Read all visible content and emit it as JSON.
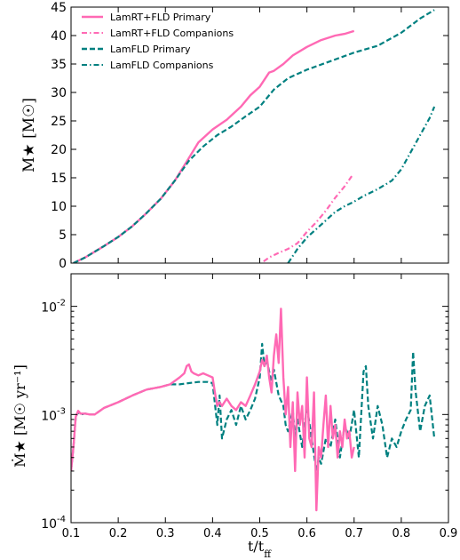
{
  "colors": {
    "pink": "#ff69b4",
    "teal": "#008080"
  },
  "chart_data": [
    {
      "type": "line",
      "ylabel": "M★ [M☉]",
      "xlim": [
        0.1,
        0.9
      ],
      "ylim": [
        0,
        45
      ],
      "y_ticks": [
        "0",
        "5",
        "10",
        "15",
        "20",
        "25",
        "30",
        "35",
        "40",
        "45"
      ],
      "legend_position": "upper-left",
      "series": [
        {
          "name": "LamRT+FLD Primary",
          "color": "#ff69b4",
          "style": "solid",
          "x": [
            0.105,
            0.13,
            0.15,
            0.17,
            0.2,
            0.23,
            0.26,
            0.29,
            0.32,
            0.35,
            0.37,
            0.4,
            0.43,
            0.46,
            0.48,
            0.5,
            0.52,
            0.53,
            0.55,
            0.57,
            0.6,
            0.63,
            0.66,
            0.68,
            0.7
          ],
          "y": [
            0,
            1,
            2,
            3,
            4.6,
            6.5,
            8.8,
            11.3,
            14.5,
            18.5,
            21.2,
            23.5,
            25.2,
            27.5,
            29.5,
            31,
            33.5,
            33.8,
            35,
            36.5,
            38,
            39.2,
            40,
            40.3,
            40.8
          ]
        },
        {
          "name": "LamRT+FLD Companions",
          "color": "#ff69b4",
          "style": "dashdot",
          "x": [
            0.508,
            0.52,
            0.54,
            0.56,
            0.58,
            0.6,
            0.62,
            0.64,
            0.66,
            0.68,
            0.695
          ],
          "y": [
            0.3,
            1,
            1.8,
            2.5,
            3.5,
            5.5,
            7.2,
            9.2,
            11.5,
            13.5,
            15.3
          ]
        },
        {
          "name": "LamFLD Primary",
          "color": "#008080",
          "style": "dashed",
          "x": [
            0.105,
            0.13,
            0.15,
            0.17,
            0.2,
            0.23,
            0.26,
            0.29,
            0.32,
            0.35,
            0.38,
            0.41,
            0.44,
            0.47,
            0.5,
            0.53,
            0.56,
            0.6,
            0.65,
            0.7,
            0.75,
            0.8,
            0.84,
            0.87
          ],
          "y": [
            0,
            1,
            2,
            3,
            4.6,
            6.5,
            8.8,
            11.3,
            14.5,
            18,
            20.5,
            22.5,
            24,
            25.8,
            27.5,
            30.5,
            32.5,
            34,
            35.5,
            37,
            38.2,
            40.5,
            43,
            44.5
          ]
        },
        {
          "name": "LamFLD Companions",
          "color": "#008080",
          "style": "dashdot",
          "x": [
            0.56,
            0.58,
            0.6,
            0.62,
            0.64,
            0.66,
            0.68,
            0.7,
            0.72,
            0.75,
            0.78,
            0.8,
            0.82,
            0.84,
            0.86,
            0.87
          ],
          "y": [
            0,
            2.5,
            4.5,
            6,
            7.5,
            9,
            10,
            10.8,
            11.8,
            13,
            14.5,
            16.5,
            19.5,
            22.5,
            25.5,
            27.5
          ]
        }
      ]
    },
    {
      "type": "line",
      "ylabel": "Ṁ★ [M☉ yr⁻¹]",
      "xlabel": "t/t_ff",
      "xlim": [
        0.1,
        0.9
      ],
      "ylim": [
        0.0001,
        0.02
      ],
      "yscale": "log",
      "x_ticks": [
        "0.1",
        "0.2",
        "0.3",
        "0.4",
        "0.5",
        "0.6",
        "0.7",
        "0.8",
        "0.9"
      ],
      "y_ticks": [
        {
          "base": "10",
          "exp": "-2"
        },
        {
          "base": "10",
          "exp": "-3"
        },
        {
          "base": "10",
          "exp": "-4"
        }
      ],
      "y_tick_values": [
        0.01,
        0.001,
        0.0001
      ],
      "series": [
        {
          "name": "LamFLD Primary",
          "color": "#008080",
          "style": "dashed",
          "x": [
            0.1,
            0.105,
            0.11,
            0.115,
            0.12,
            0.13,
            0.14,
            0.15,
            0.17,
            0.2,
            0.23,
            0.26,
            0.29,
            0.31,
            0.33,
            0.35,
            0.37,
            0.39,
            0.4,
            0.41,
            0.415,
            0.42,
            0.43,
            0.44,
            0.45,
            0.46,
            0.47,
            0.48,
            0.49,
            0.5,
            0.505,
            0.51,
            0.515,
            0.52,
            0.525,
            0.53,
            0.54,
            0.55,
            0.555,
            0.56,
            0.57,
            0.575,
            0.58,
            0.59,
            0.6,
            0.61,
            0.62,
            0.625,
            0.63,
            0.64,
            0.65,
            0.66,
            0.67,
            0.68,
            0.69,
            0.7,
            0.71,
            0.72,
            0.725,
            0.73,
            0.74,
            0.75,
            0.76,
            0.77,
            0.78,
            0.79,
            0.8,
            0.81,
            0.82,
            0.825,
            0.83,
            0.84,
            0.85,
            0.86,
            0.87
          ],
          "y": [
            0.0003,
            0.0005,
            0.00095,
            0.00105,
            0.001,
            0.00102,
            0.001,
            0.001,
            0.00115,
            0.0013,
            0.0015,
            0.0017,
            0.0018,
            0.0019,
            0.0019,
            0.00195,
            0.002,
            0.002,
            0.00195,
            0.0008,
            0.0015,
            0.0006,
            0.0009,
            0.0011,
            0.0008,
            0.0012,
            0.0009,
            0.0011,
            0.0014,
            0.0022,
            0.0045,
            0.0028,
            0.0032,
            0.0025,
            0.002,
            0.0026,
            0.0015,
            0.0012,
            0.0008,
            0.0007,
            0.0011,
            0.0006,
            0.0009,
            0.0005,
            0.0012,
            0.0006,
            0.0003,
            0.0004,
            0.00035,
            0.0006,
            0.0005,
            0.0009,
            0.0004,
            0.0008,
            0.0006,
            0.0011,
            0.0004,
            0.0025,
            0.0028,
            0.0012,
            0.0006,
            0.0012,
            0.0008,
            0.0004,
            0.0006,
            0.0005,
            0.0007,
            0.0009,
            0.0011,
            0.0038,
            0.0017,
            0.0007,
            0.0012,
            0.0015,
            0.0006
          ]
        },
        {
          "name": "LamRT+FLD Primary",
          "color": "#ff69b4",
          "style": "solid",
          "x": [
            0.1,
            0.105,
            0.11,
            0.115,
            0.12,
            0.13,
            0.14,
            0.15,
            0.17,
            0.2,
            0.23,
            0.26,
            0.29,
            0.31,
            0.33,
            0.34,
            0.345,
            0.35,
            0.355,
            0.36,
            0.37,
            0.38,
            0.39,
            0.4,
            0.405,
            0.41,
            0.415,
            0.42,
            0.43,
            0.44,
            0.45,
            0.46,
            0.47,
            0.48,
            0.49,
            0.5,
            0.505,
            0.51,
            0.515,
            0.52,
            0.525,
            0.53,
            0.535,
            0.54,
            0.545,
            0.55,
            0.555,
            0.56,
            0.565,
            0.57,
            0.575,
            0.58,
            0.585,
            0.59,
            0.595,
            0.6,
            0.605,
            0.61,
            0.615,
            0.62,
            0.625,
            0.63,
            0.635,
            0.64,
            0.645,
            0.65,
            0.655,
            0.66,
            0.665,
            0.67,
            0.675,
            0.68,
            0.685,
            0.69,
            0.695,
            0.7
          ],
          "y": [
            0.0003,
            0.0005,
            0.00095,
            0.00108,
            0.00102,
            0.00102,
            0.001,
            0.001,
            0.00115,
            0.0013,
            0.0015,
            0.0017,
            0.0018,
            0.0019,
            0.0022,
            0.0024,
            0.0028,
            0.0029,
            0.0025,
            0.0024,
            0.0023,
            0.0024,
            0.0023,
            0.0022,
            0.0016,
            0.0012,
            0.0013,
            0.0012,
            0.0014,
            0.0012,
            0.0011,
            0.0013,
            0.0012,
            0.0015,
            0.0019,
            0.0025,
            0.0032,
            0.0028,
            0.0035,
            0.0022,
            0.0016,
            0.0035,
            0.0055,
            0.003,
            0.0095,
            0.0022,
            0.001,
            0.0018,
            0.0005,
            0.0013,
            0.0003,
            0.0016,
            0.0008,
            0.0012,
            0.0004,
            0.0022,
            0.0006,
            0.0005,
            0.0016,
            0.00013,
            0.0005,
            0.0004,
            0.0008,
            0.0015,
            0.0005,
            0.0012,
            0.0006,
            0.0008,
            0.0004,
            0.0007,
            0.0005,
            0.0009,
            0.0006,
            0.0007,
            0.0004,
            0.0005
          ]
        }
      ]
    }
  ]
}
